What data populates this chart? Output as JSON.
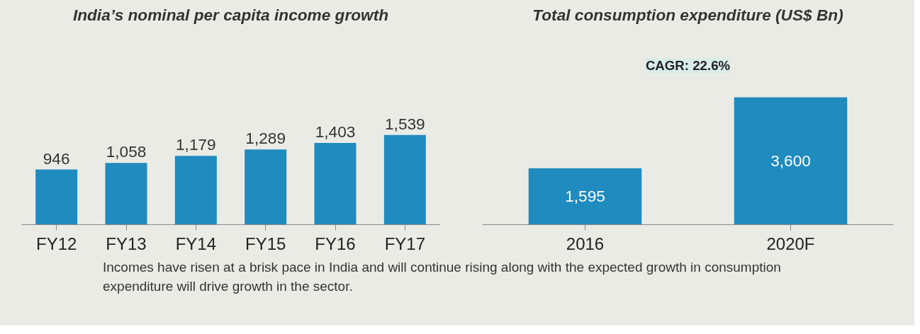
{
  "chart_data": [
    {
      "type": "bar",
      "title": "India’s nominal per capita income growth",
      "categories": [
        "FY12",
        "FY13",
        "FY14",
        "FY15",
        "FY16",
        "FY17"
      ],
      "values": [
        946,
        1058,
        1179,
        1289,
        1403,
        1539
      ],
      "value_labels": [
        "946",
        "1,058",
        "1,179",
        "1,289",
        "1,403",
        "1,539"
      ],
      "color": "#1f8bbf",
      "grid": false
    },
    {
      "type": "bar",
      "title": "Total consumption expenditure (US$ Bn)",
      "categories": [
        "2016",
        "2020F"
      ],
      "values": [
        1595,
        3600
      ],
      "value_labels": [
        "1,595",
        "3,600"
      ],
      "color": "#1f8bbf",
      "grid": false,
      "annotations": [
        "CAGR: 22.6%",
        "Incomes have risen at a brisk pace in India and will continue rising along with the expected growth in consumption expenditure will drive growth in the sector."
      ]
    }
  ]
}
